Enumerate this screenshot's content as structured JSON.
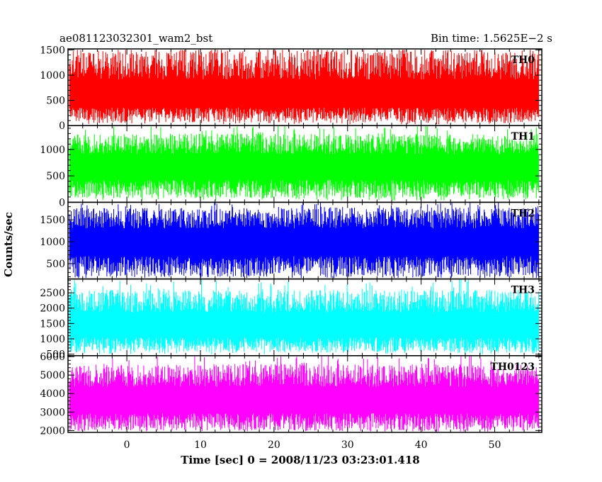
{
  "header": {
    "title": "ae081123032301_wam2_bst",
    "bin_time": "Bin time: 1.5625E−2 s"
  },
  "chart_data": {
    "type": "line",
    "x_axis": {
      "label": "Time [sec] 0 = 2008/11/23 03:23:01.418",
      "range": [
        -8,
        56.4
      ],
      "ticks": [
        0,
        10,
        20,
        30,
        40,
        50
      ],
      "data_range": [
        -7.8,
        56.0
      ]
    },
    "y_label": "Counts/sec",
    "panels": [
      {
        "name": "TH0",
        "color": "#ff0000",
        "ylim": [
          0,
          1520
        ],
        "yticks": [
          0,
          500,
          1000,
          1500
        ],
        "baseline": 600,
        "low": 60,
        "high": 1500,
        "spike_max": 1500
      },
      {
        "name": "TH1",
        "color": "#00ff00",
        "ylim": [
          0,
          1450
        ],
        "yticks": [
          0,
          500,
          1000
        ],
        "baseline": 700,
        "low": 80,
        "high": 1300,
        "spike_max": 1450
      },
      {
        "name": "TH2",
        "color": "#0000ff",
        "ylim": [
          150,
          1900
        ],
        "yticks": [
          500,
          1000,
          1500
        ],
        "baseline": 1050,
        "low": 200,
        "high": 1780,
        "spike_max": 1900
      },
      {
        "name": "TH3",
        "color": "#00ffff",
        "ylim": [
          450,
          2950
        ],
        "yticks": [
          500,
          1000,
          1500,
          2000,
          2500
        ],
        "baseline": 1450,
        "low": 550,
        "high": 2600,
        "spike_max": 2950
      },
      {
        "name": "TH0123",
        "color": "#ff00ff",
        "ylim": [
          1900,
          6050
        ],
        "yticks": [
          2000,
          3000,
          4000,
          5000,
          6000
        ],
        "baseline": 3700,
        "low": 2000,
        "high": 5600,
        "spike_max": 6050
      }
    ]
  }
}
